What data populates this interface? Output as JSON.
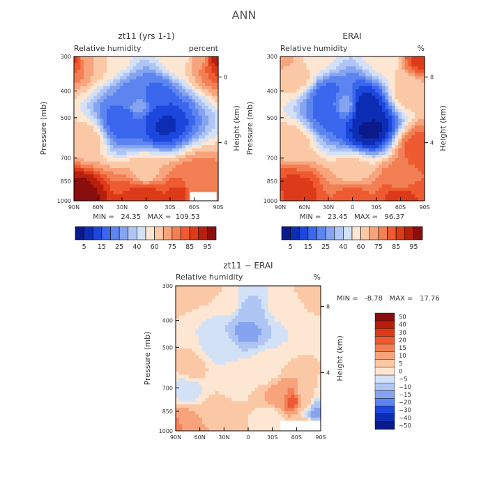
{
  "figure": {
    "title": "ANN",
    "colors": {
      "blue_ramp": [
        "#0a1a8c",
        "#0d2db4",
        "#1c47dc",
        "#3b66ee",
        "#5c85f0",
        "#85a4f0",
        "#afc5f4",
        "#d3e1f7"
      ],
      "red_ramp": [
        "#fde6d2",
        "#fbc8a6",
        "#f7a47c",
        "#f37f55",
        "#ee5a31",
        "#dc3a19",
        "#b81e0c",
        "#8a0e0e"
      ]
    }
  },
  "chart_data": [
    {
      "type": "heatmap",
      "title": "zt11 (yrs 1-1)",
      "subtitle_left": "Relative humidity",
      "subtitle_right": "percent",
      "ylabel": "Pressure (mb)",
      "ylabel_right": "Height (km)",
      "x_ticks": [
        "90N",
        "60N",
        "30N",
        "0",
        "30S",
        "60S",
        "90S"
      ],
      "x_tick_values": [
        90,
        60,
        30,
        0,
        -30,
        -60,
        -90
      ],
      "y_ticks": [
        300,
        400,
        500,
        700,
        850,
        1000
      ],
      "y_right_ticks": [
        8,
        4
      ],
      "y_right_values_mb": [
        356,
        616
      ],
      "xlim": [
        90,
        -90
      ],
      "ylim": [
        1000,
        300
      ],
      "stats": "MIN =   24.35   MAX =  109.53",
      "colorbar": {
        "levels": [
          "5",
          "15",
          "25",
          "40",
          "60",
          "75",
          "85",
          "95"
        ]
      },
      "fields": [
        {
          "lat": 90,
          "mb": 300,
          "level": 13
        },
        {
          "lat": 75,
          "mb": 300,
          "level": 10
        },
        {
          "lat": 55,
          "mb": 300,
          "level": 9
        },
        {
          "lat": 45,
          "mb": 300,
          "level": 8
        },
        {
          "lat": 28,
          "mb": 500,
          "level": 3
        },
        {
          "lat": 10,
          "mb": 450,
          "level": 5
        },
        {
          "lat": -15,
          "mb": 500,
          "level": 2
        },
        {
          "lat": -40,
          "mb": 300,
          "level": 8
        },
        {
          "lat": -70,
          "mb": 300,
          "level": 10
        },
        {
          "lat": -85,
          "mb": 300,
          "level": 14
        },
        {
          "lat": 0,
          "mb": 800,
          "level": 9
        },
        {
          "lat": -60,
          "mb": 850,
          "level": 11
        },
        {
          "lat": 90,
          "mb": 980,
          "level": 15
        },
        {
          "lat": 0,
          "mb": 950,
          "level": 13
        },
        {
          "lat": -60,
          "mb": 960,
          "level": 11
        }
      ],
      "tweaks": [
        {
          "lat": 15,
          "mb": 420,
          "level": 4
        },
        {
          "lat": -10,
          "mb": 420,
          "level": 3
        },
        {
          "lat": -20,
          "mb": 520,
          "level": 1
        },
        {
          "lat": 28,
          "mb": 520,
          "level": 3
        },
        {
          "lat": 75,
          "mb": 600,
          "level": 9
        },
        {
          "lat": 85,
          "mb": 980,
          "level": 15
        },
        {
          "lat": 5,
          "mb": 960,
          "level": 13
        },
        {
          "lat": -45,
          "mb": 960,
          "level": 13
        }
      ],
      "missing": {
        "lat_from": -55,
        "lat_to": -88,
        "mb_from": 930,
        "mb_to": 1000
      }
    },
    {
      "type": "heatmap",
      "title": "ERAI",
      "subtitle_left": "Relative humidity",
      "subtitle_right": "%",
      "ylabel": "Pressure (mb)",
      "ylabel_right": "Height (km)",
      "x_ticks": [
        "90N",
        "60N",
        "30N",
        "0",
        "30S",
        "60S",
        "90S"
      ],
      "x_tick_values": [
        90,
        60,
        30,
        0,
        -30,
        -60,
        -90
      ],
      "y_ticks": [
        300,
        400,
        500,
        700,
        850,
        1000
      ],
      "y_right_ticks": [
        8,
        4
      ],
      "y_right_values_mb": [
        356,
        616
      ],
      "xlim": [
        90,
        -90
      ],
      "ylim": [
        1000,
        300
      ],
      "stats": "MIN =   23.45   MAX =   96.37",
      "colorbar": {
        "levels": [
          "5",
          "15",
          "25",
          "40",
          "60",
          "75",
          "85",
          "95"
        ]
      },
      "fields": [
        {
          "lat": 90,
          "mb": 300,
          "level": 10
        },
        {
          "lat": 70,
          "mb": 350,
          "level": 9
        },
        {
          "lat": 45,
          "mb": 300,
          "level": 8
        },
        {
          "lat": 28,
          "mb": 480,
          "level": 3
        },
        {
          "lat": 10,
          "mb": 450,
          "level": 5
        },
        {
          "lat": -15,
          "mb": 500,
          "level": 1
        },
        {
          "lat": -40,
          "mb": 300,
          "level": 8
        },
        {
          "lat": -70,
          "mb": 400,
          "level": 9
        },
        {
          "lat": -88,
          "mb": 300,
          "level": 13
        },
        {
          "lat": 0,
          "mb": 800,
          "level": 9
        },
        {
          "lat": -60,
          "mb": 850,
          "level": 11
        },
        {
          "lat": 90,
          "mb": 980,
          "level": 12
        },
        {
          "lat": 70,
          "mb": 950,
          "level": 13
        },
        {
          "lat": 0,
          "mb": 950,
          "level": 12
        },
        {
          "lat": -60,
          "mb": 960,
          "level": 13
        }
      ],
      "tweaks": [
        {
          "lat": -15,
          "mb": 450,
          "level": 1
        },
        {
          "lat": -20,
          "mb": 540,
          "level": 0
        },
        {
          "lat": 30,
          "mb": 420,
          "level": 3
        },
        {
          "lat": 75,
          "mb": 620,
          "level": 9
        },
        {
          "lat": -85,
          "mb": 650,
          "level": 12
        },
        {
          "lat": 80,
          "mb": 960,
          "level": 13
        }
      ],
      "missing": null
    },
    {
      "type": "heatmap",
      "title": "zt11 − ERAI",
      "subtitle_left": "Relative humidity",
      "subtitle_right": "%",
      "ylabel": "Pressure (mb)",
      "ylabel_right": "Height (km)",
      "x_ticks": [
        "90N",
        "60N",
        "30N",
        "0",
        "30S",
        "60S",
        "90S"
      ],
      "x_tick_values": [
        90,
        60,
        30,
        0,
        -30,
        -60,
        -90
      ],
      "y_ticks": [
        300,
        400,
        500,
        700,
        850,
        1000
      ],
      "y_right_ticks": [
        8,
        4
      ],
      "y_right_values_mb": [
        356,
        616
      ],
      "xlim": [
        90,
        -90
      ],
      "ylim": [
        1000,
        300
      ],
      "stats": "MIN =   -8.78   MAX =   17.76",
      "colorbar": {
        "levels": [
          "50",
          "40",
          "30",
          "20",
          "15",
          "10",
          "5",
          "0",
          "−5",
          "−10",
          "−15",
          "−20",
          "−30",
          "−40",
          "−50"
        ]
      },
      "fields": [
        {
          "lat": 90,
          "mb": 300,
          "level": 9
        },
        {
          "lat": 50,
          "mb": 300,
          "level": 9
        },
        {
          "lat": 20,
          "mb": 350,
          "level": 8
        },
        {
          "lat": 0,
          "mb": 380,
          "level": 6
        },
        {
          "lat": -40,
          "mb": 350,
          "level": 8
        },
        {
          "lat": -80,
          "mb": 300,
          "level": 9
        },
        {
          "lat": 70,
          "mb": 600,
          "level": 9
        },
        {
          "lat": 20,
          "mb": 650,
          "level": 8
        },
        {
          "lat": -20,
          "mb": 600,
          "level": 8
        },
        {
          "lat": -70,
          "mb": 750,
          "level": 9
        },
        {
          "lat": 40,
          "mb": 850,
          "level": 9
        },
        {
          "lat": -30,
          "mb": 900,
          "level": 8
        },
        {
          "lat": -75,
          "mb": 800,
          "level": 10
        },
        {
          "lat": 80,
          "mb": 970,
          "level": 10
        },
        {
          "lat": -70,
          "mb": 950,
          "level": 9
        }
      ],
      "tweaks": [
        {
          "lat": 2,
          "mb": 370,
          "level": 6
        },
        {
          "lat": 2,
          "mb": 430,
          "level": 5
        },
        {
          "lat": 35,
          "mb": 500,
          "level": 7
        },
        {
          "lat": -55,
          "mb": 780,
          "level": 12
        },
        {
          "lat": -80,
          "mb": 820,
          "level": 5
        },
        {
          "lat": -83,
          "mb": 860,
          "level": 5
        },
        {
          "lat": 85,
          "mb": 980,
          "level": 11
        },
        {
          "lat": -40,
          "mb": 760,
          "level": 10
        },
        {
          "lat": 75,
          "mb": 700,
          "level": 7
        }
      ],
      "missing": {
        "lat_from": -40,
        "lat_to": -90,
        "mb_from": 920,
        "mb_to": 1000
      }
    }
  ]
}
